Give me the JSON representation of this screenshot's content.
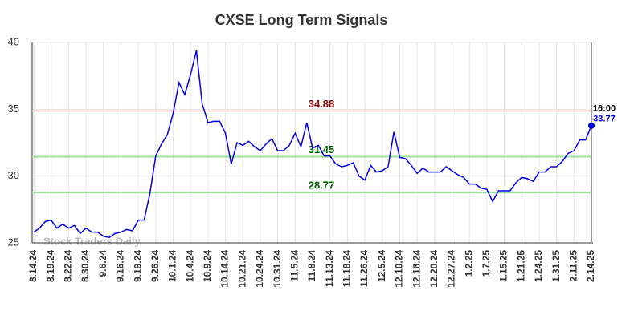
{
  "chart_data": {
    "type": "line",
    "title": "CXSE Long Term Signals",
    "categories": [
      "8.14.24",
      null,
      null,
      "8.19.24",
      null,
      null,
      "8.22.24",
      null,
      null,
      "8.30.24",
      null,
      null,
      "9.6.24",
      null,
      null,
      "9.16.24",
      null,
      null,
      "9.19.24",
      null,
      null,
      "9.26.24",
      null,
      null,
      "10.1.24",
      null,
      null,
      "10.4.24",
      null,
      null,
      "10.9.24",
      null,
      null,
      "10.14.24",
      null,
      null,
      "10.21.24",
      null,
      null,
      "10.24.24",
      null,
      null,
      "10.31.24",
      null,
      null,
      "11.5.24",
      null,
      null,
      "11.8.24",
      null,
      null,
      "11.13.24",
      null,
      null,
      "11.18.24",
      null,
      null,
      "11.26.24",
      null,
      null,
      "12.5.24",
      null,
      null,
      "12.10.24",
      null,
      null,
      "12.16.24",
      null,
      null,
      "12.20.24",
      null,
      null,
      "12.27.24",
      null,
      null,
      "1.2.25",
      null,
      null,
      "1.7.25",
      null,
      null,
      "1.15.25",
      null,
      null,
      "1.21.25",
      null,
      null,
      "1.24.25",
      null,
      null,
      "1.31.25",
      null,
      null,
      "2.11.25",
      null,
      null,
      "2.14.25"
    ],
    "series": [
      {
        "color": "#0000ee",
        "values": [
          25.8,
          26.1,
          26.6,
          26.7,
          26.1,
          26.4,
          26.1,
          26.3,
          25.7,
          26.1,
          25.8,
          25.8,
          25.5,
          25.4,
          25.7,
          25.8,
          26.0,
          25.9,
          26.7,
          26.7,
          28.7,
          31.5,
          32.4,
          33.1,
          34.7,
          37.0,
          36.1,
          37.6,
          39.4,
          35.4,
          34.0,
          34.1,
          34.1,
          33.2,
          30.9,
          32.5,
          32.3,
          32.6,
          32.2,
          31.9,
          32.4,
          32.8,
          31.9,
          31.9,
          32.3,
          33.2,
          32.2,
          34.0,
          32.1,
          32.3,
          31.5,
          31.5,
          30.9,
          30.7,
          30.8,
          31.0,
          30.0,
          29.7,
          30.8,
          30.3,
          30.4,
          30.7,
          33.3,
          31.4,
          31.3,
          30.8,
          30.2,
          30.6,
          30.3,
          30.3,
          30.3,
          30.7,
          30.4,
          30.1,
          29.9,
          29.4,
          29.4,
          29.1,
          29.0,
          28.1,
          28.9,
          28.9,
          28.9,
          29.5,
          29.9,
          29.8,
          29.6,
          30.3,
          30.3,
          30.7,
          30.7,
          31.1,
          31.7,
          31.9,
          32.7,
          32.7,
          33.77
        ]
      }
    ],
    "ylim": [
      25,
      40
    ],
    "yticks": [
      25,
      30,
      35,
      40
    ],
    "grid": true,
    "hlines": [
      {
        "value": 34.88,
        "color": "#8b0000"
      },
      {
        "value": 31.45,
        "color": "#006400"
      },
      {
        "value": 28.77,
        "color": "#006400"
      }
    ],
    "last_time": "16:00",
    "watermark": "Stock Traders Daily"
  }
}
